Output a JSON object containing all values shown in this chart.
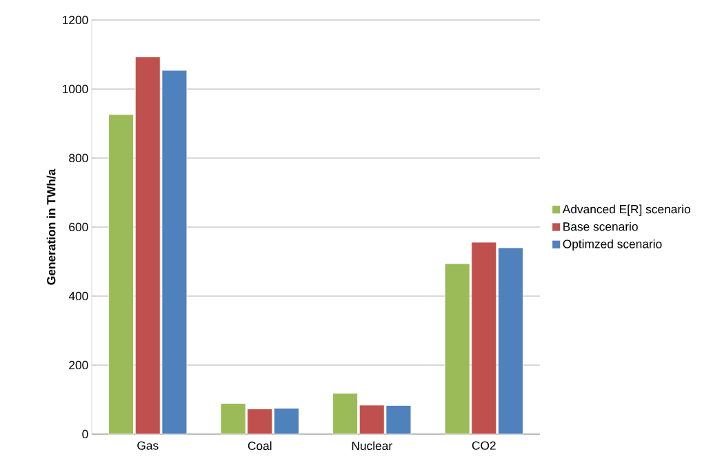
{
  "chart_data": {
    "type": "bar",
    "ylabel": "Generation in TWh/a",
    "categories": [
      "Gas",
      "Coal",
      "Nuclear",
      "CO2"
    ],
    "series": [
      {
        "name": "Advanced E[R] scenario",
        "color": "#9bbb59",
        "values": [
          926,
          89,
          118,
          494
        ]
      },
      {
        "name": "Base scenario",
        "color": "#c0504d",
        "values": [
          1093,
          73,
          84,
          556
        ]
      },
      {
        "name": "Optimzed scenario",
        "color": "#4f81bd",
        "values": [
          1054,
          75,
          83,
          540
        ]
      }
    ],
    "ylim": [
      0,
      1200
    ],
    "yticks": [
      0,
      200,
      400,
      600,
      800,
      1000,
      1200
    ],
    "grid": "y",
    "legend": "right"
  }
}
